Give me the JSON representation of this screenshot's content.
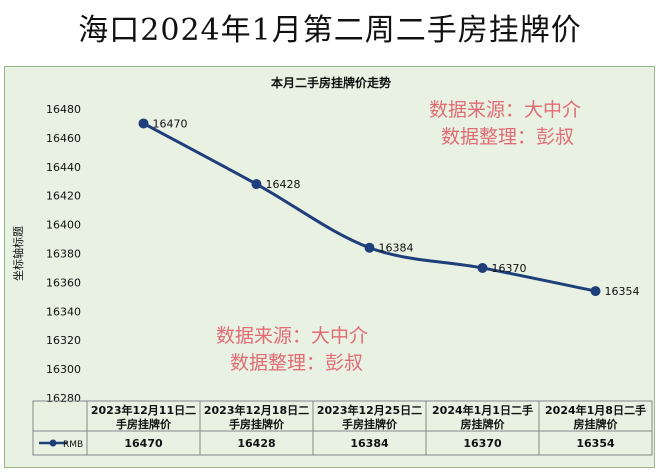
{
  "title": "海口2024年1月第二周二手房挂牌价",
  "watermarks": [
    {
      "line1": "数据来源：大中介",
      "line2": "数据整理：彭叔"
    },
    {
      "line1": "数据来源：大中介",
      "line2": "数据整理：彭叔"
    }
  ],
  "chart_data": {
    "type": "line",
    "title": "本月二手房挂牌价走势",
    "ylabel": "坐标轴标题",
    "xlabel": "",
    "ylim": [
      16280,
      16480
    ],
    "yticks": [
      16280,
      16300,
      16320,
      16340,
      16360,
      16380,
      16400,
      16420,
      16440,
      16460,
      16480
    ],
    "grid": false,
    "legend": "data-table",
    "categories": [
      [
        "2023年12月11日二",
        "手房挂牌价"
      ],
      [
        "2023年12月18日二",
        "手房挂牌价"
      ],
      [
        "2023年12月25日二",
        "手房挂牌价"
      ],
      [
        "2024年1月1日二手",
        "房挂牌价"
      ],
      [
        "2024年1月8日二手",
        "房挂牌价"
      ]
    ],
    "series": [
      {
        "name": "RMB",
        "values": [
          16470,
          16428,
          16384,
          16370,
          16354
        ],
        "color": "#1f3f7a"
      }
    ],
    "data_labels": [
      "16470",
      "16428",
      "16384",
      "16370",
      "16354"
    ]
  }
}
